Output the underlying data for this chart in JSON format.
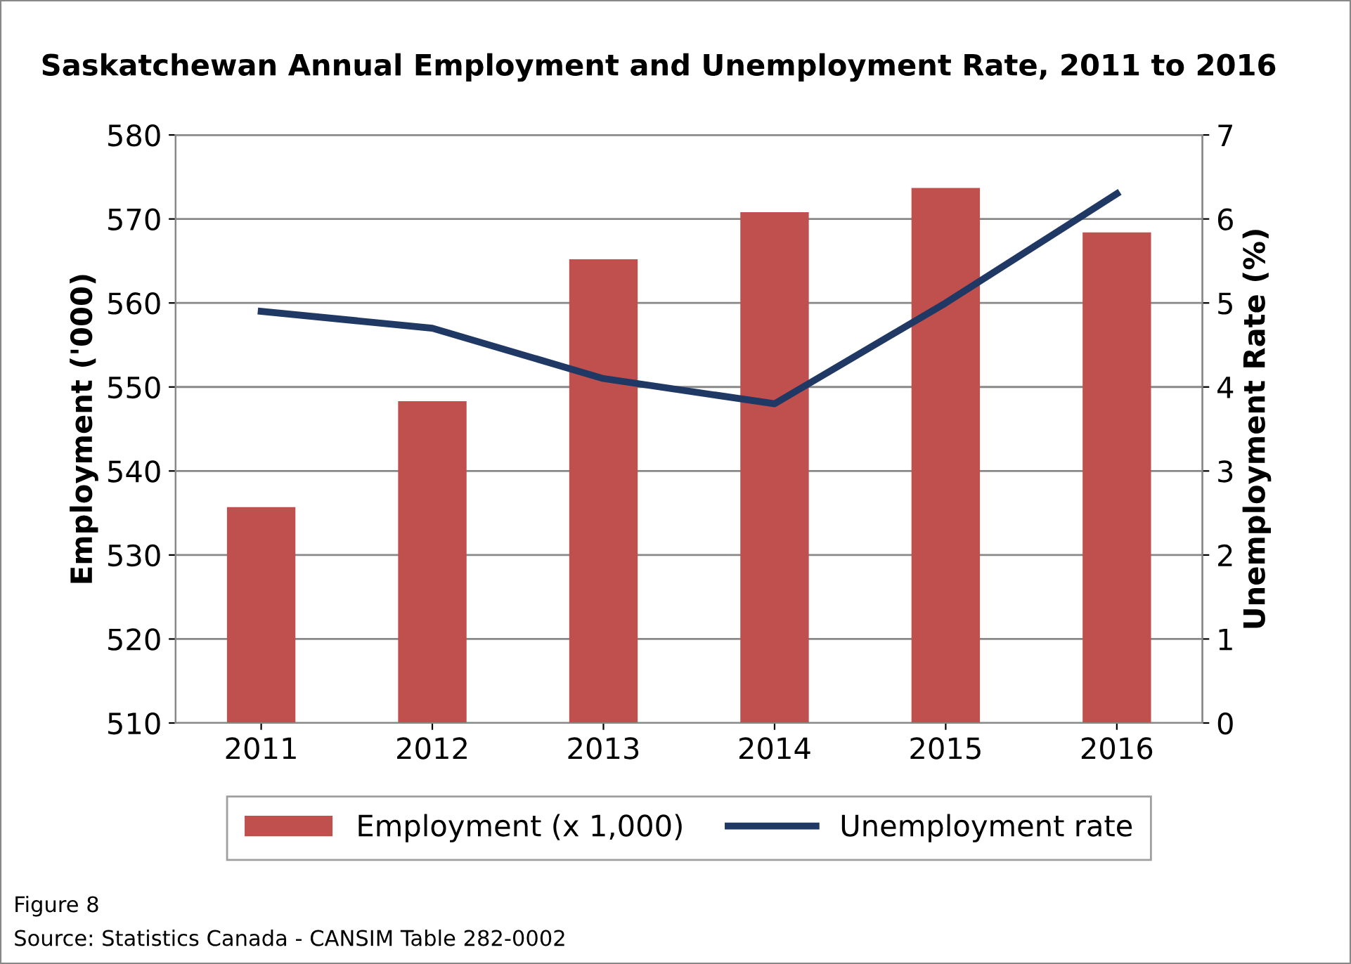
{
  "chart_data": {
    "type": "bar",
    "title": "Saskatchewan Annual Employment and Unemployment Rate, 2011 to 2016",
    "categories": [
      "2011",
      "2012",
      "2013",
      "2014",
      "2015",
      "2016"
    ],
    "series": [
      {
        "name": "Employment (x 1,000)",
        "color": "#c0504d",
        "values": [
          535.7,
          548.3,
          565.2,
          570.8,
          573.7,
          568.4
        ]
      },
      {
        "name": "Unemployment rate",
        "type": "line",
        "axis": "y2",
        "color": "#1f3864",
        "values": [
          4.9,
          4.7,
          4.1,
          3.8,
          5.0,
          6.3
        ]
      }
    ],
    "ylabel": "Employment ('000)",
    "y2label": "Unemployment Rate (%)",
    "ylim": [
      510,
      580
    ],
    "yticks": [
      510,
      520,
      530,
      540,
      550,
      560,
      570,
      580
    ],
    "y2lim": [
      0,
      7
    ],
    "y2ticks": [
      0,
      1,
      2,
      3,
      4,
      5,
      6,
      7
    ],
    "grid": "y",
    "legend": "bottom",
    "marker": "none",
    "line_style": "solid",
    "annotations": [
      "Figure 8",
      "Source: Statistics Canada - CANSIM Table 282-0002"
    ]
  }
}
